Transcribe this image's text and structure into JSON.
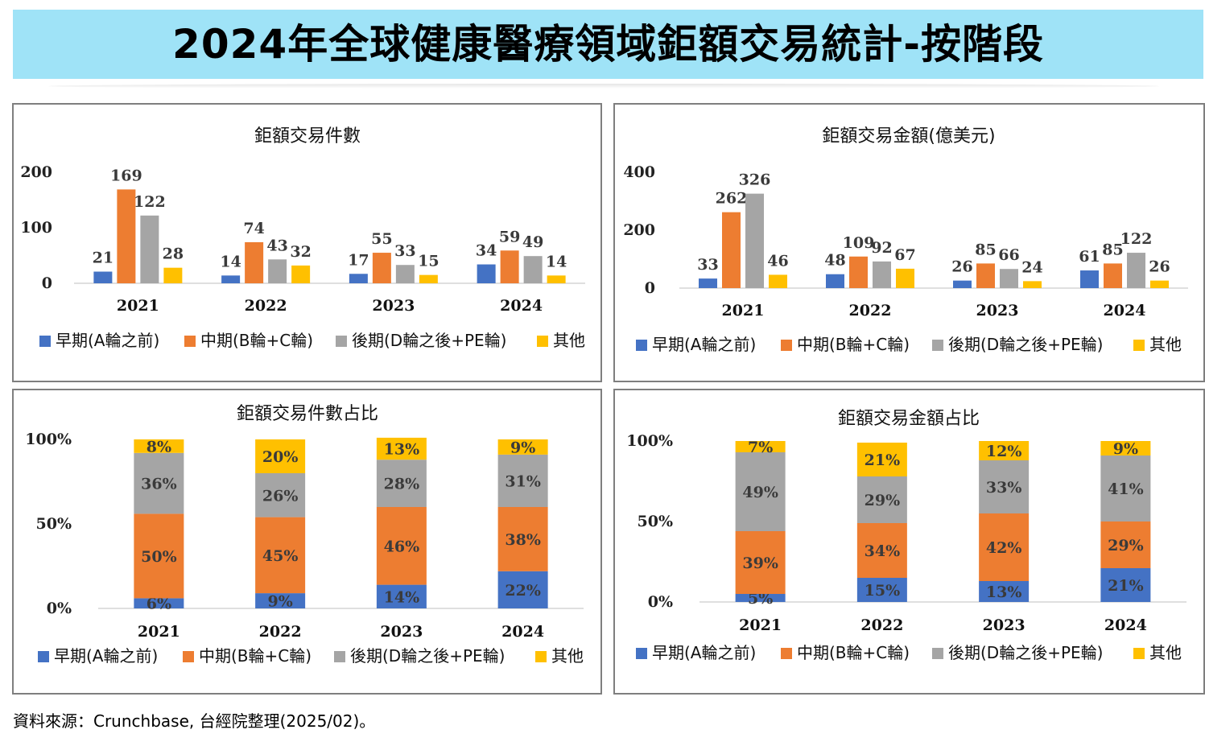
{
  "page": {
    "title": "2024年全球健康醫療領域鉅額交易統計-按階段",
    "source": "資料來源：Crunchbase, 台經院整理(2025/02)。"
  },
  "chart_data": [
    {
      "type": "bar",
      "title": "鉅額交易件數",
      "categories": [
        "2021",
        "2022",
        "2023",
        "2024"
      ],
      "yticks": [
        "0",
        "100",
        "200"
      ],
      "ylim": [
        0,
        200
      ],
      "series": [
        {
          "name": "早期(A輪之前)",
          "color": "#4472c4",
          "values": [
            21,
            14,
            17,
            34
          ]
        },
        {
          "name": "中期(B輪+C輪)",
          "color": "#ed7d31",
          "values": [
            169,
            74,
            55,
            59
          ]
        },
        {
          "name": "後期(D輪之後+PE輪)",
          "color": "#a5a5a5",
          "values": [
            122,
            43,
            33,
            49
          ]
        },
        {
          "name": "其他",
          "color": "#ffc000",
          "values": [
            28,
            32,
            15,
            14
          ]
        }
      ],
      "legend": "bottom"
    },
    {
      "type": "bar",
      "title": "鉅額交易金額(億美元)",
      "categories": [
        "2021",
        "2022",
        "2023",
        "2024"
      ],
      "yticks": [
        "0",
        "200",
        "400"
      ],
      "ylim": [
        0,
        400
      ],
      "series": [
        {
          "name": "早期(A輪之前)",
          "color": "#4472c4",
          "values": [
            33,
            48,
            26,
            61
          ]
        },
        {
          "name": "中期(B輪+C輪)",
          "color": "#ed7d31",
          "values": [
            262,
            109,
            85,
            85
          ]
        },
        {
          "name": "後期(D輪之後+PE輪)",
          "color": "#a5a5a5",
          "values": [
            326,
            92,
            66,
            122
          ]
        },
        {
          "name": "其他",
          "color": "#ffc000",
          "values": [
            46,
            67,
            24,
            26
          ]
        }
      ],
      "legend": "bottom"
    },
    {
      "type": "bar",
      "stacked": true,
      "title": "鉅額交易件數占比",
      "categories": [
        "2021",
        "2022",
        "2023",
        "2024"
      ],
      "yticks": [
        "0%",
        "50%",
        "100%"
      ],
      "ylim": [
        0,
        100
      ],
      "series": [
        {
          "name": "早期(A輪之前)",
          "color": "#4472c4",
          "values": [
            6,
            9,
            14,
            22
          ],
          "labels": [
            "6%",
            "9%",
            "14%",
            "22%"
          ]
        },
        {
          "name": "中期(B輪+C輪)",
          "color": "#ed7d31",
          "values": [
            50,
            45,
            46,
            38
          ],
          "labels": [
            "50%",
            "45%",
            "46%",
            "38%"
          ]
        },
        {
          "name": "後期(D輪之後+PE輪)",
          "color": "#a5a5a5",
          "values": [
            36,
            26,
            28,
            31
          ],
          "labels": [
            "36%",
            "26%",
            "28%",
            "31%"
          ]
        },
        {
          "name": "其他",
          "color": "#ffc000",
          "values": [
            8,
            20,
            13,
            9
          ],
          "labels": [
            "8%",
            "20%",
            "13%",
            "9%"
          ]
        }
      ],
      "legend": "bottom"
    },
    {
      "type": "bar",
      "stacked": true,
      "title": "鉅額交易金額占比",
      "categories": [
        "2021",
        "2022",
        "2023",
        "2024"
      ],
      "yticks": [
        "0%",
        "50%",
        "100%"
      ],
      "ylim": [
        0,
        100
      ],
      "series": [
        {
          "name": "早期(A輪之前)",
          "color": "#4472c4",
          "values": [
            5,
            15,
            13,
            21
          ],
          "labels": [
            "5%",
            "15%",
            "13%",
            "21%"
          ]
        },
        {
          "name": "中期(B輪+C輪)",
          "color": "#ed7d31",
          "values": [
            39,
            34,
            42,
            29
          ],
          "labels": [
            "39%",
            "34%",
            "42%",
            "29%"
          ]
        },
        {
          "name": "後期(D輪之後+PE輪)",
          "color": "#a5a5a5",
          "values": [
            49,
            29,
            33,
            41
          ],
          "labels": [
            "49%",
            "29%",
            "33%",
            "41%"
          ]
        },
        {
          "name": "其他",
          "color": "#ffc000",
          "values": [
            7,
            21,
            12,
            9
          ],
          "labels": [
            "7%",
            "21%",
            "12%",
            "9%"
          ]
        }
      ],
      "legend": "bottom"
    }
  ]
}
